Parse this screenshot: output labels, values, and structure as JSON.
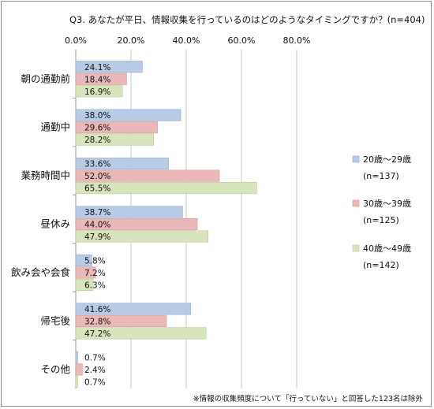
{
  "chart_data": {
    "type": "bar",
    "orientation": "horizontal",
    "title": "Q3. あなたが平日、情報収集を行っているのはどのようなタイミングですか？(n=404)",
    "categories": [
      "朝の通勤前",
      "通勤中",
      "業務時間中",
      "昼休み",
      "飲み会や会食",
      "帰宅後",
      "その他"
    ],
    "x_ticks": [
      "0.0%",
      "20.0%",
      "40.0%",
      "60.0%",
      "80.0%"
    ],
    "xlim": [
      0,
      80
    ],
    "grid": true,
    "legend_position": "right",
    "series": [
      {
        "name": "20歳～29歳",
        "n_label": "(n=137)",
        "color": "#b8cbe4",
        "stroke": "#95aed0",
        "values": [
          24.1,
          38.0,
          33.6,
          38.7,
          5.8,
          41.6,
          0.7
        ],
        "labels": [
          "24.1%",
          "38.0%",
          "33.6%",
          "38.7%",
          "5.8%",
          "41.6%",
          "0.7%"
        ]
      },
      {
        "name": "30歳～39歳",
        "n_label": "(n=125)",
        "color": "#e9b9b9",
        "stroke": "#d49a9a",
        "values": [
          18.4,
          29.6,
          52.0,
          44.0,
          7.2,
          32.8,
          2.4
        ],
        "labels": [
          "18.4%",
          "29.6%",
          "52.0%",
          "44.0%",
          "7.2%",
          "32.8%",
          "2.4%"
        ]
      },
      {
        "name": "40歳～49歳",
        "n_label": "(n=142)",
        "color": "#d7e4bd",
        "stroke": "#b9cc94",
        "values": [
          16.9,
          28.2,
          65.5,
          47.9,
          6.3,
          47.2,
          0.7
        ],
        "labels": [
          "16.9%",
          "28.2%",
          "65.5%",
          "47.9%",
          "6.3%",
          "47.2%",
          "0.7%"
        ]
      }
    ],
    "footnote": "※情報の収集頻度について「行っていない」と回答した123名は除外"
  }
}
